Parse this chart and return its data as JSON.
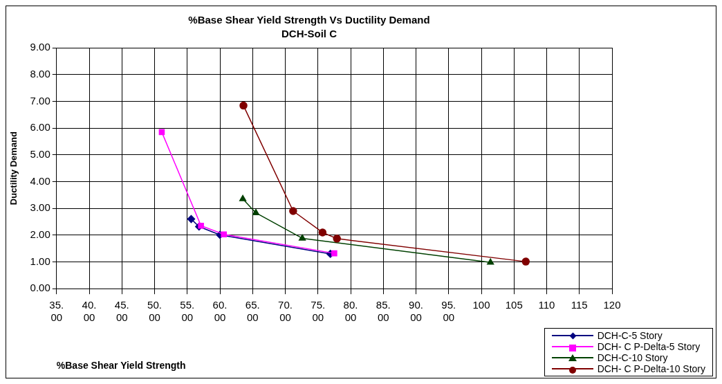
{
  "chart_data": {
    "type": "line",
    "title": "%Base Shear Yield Strength Vs Ductility Demand",
    "subtitle": "DCH-Soil C",
    "xlabel": "%Base Shear Yield Strength",
    "ylabel": "Ductility Demand",
    "series": [
      {
        "name": "DCH-C-5 Story",
        "color": "#000080",
        "marker": "diamond",
        "x": [
          55.6,
          56.8,
          60.0,
          76.9
        ],
        "values": [
          2.6,
          2.32,
          2.01,
          1.3
        ]
      },
      {
        "name": "DCH- C P-Delta-5 Story",
        "color": "#ff00ff",
        "marker": "square",
        "x": [
          51.1,
          57.1,
          60.6,
          77.5
        ],
        "values": [
          5.85,
          2.35,
          2.03,
          1.32
        ]
      },
      {
        "name": "DCH-C-10 Story",
        "color": "#004000",
        "marker": "triangle",
        "x": [
          63.5,
          65.5,
          72.6,
          101.4
        ],
        "values": [
          3.35,
          2.83,
          1.88,
          0.98
        ]
      },
      {
        "name": "DCH- C P-Delta-10 Story",
        "color": "#800000",
        "marker": "circle",
        "x": [
          63.6,
          71.2,
          75.7,
          77.9,
          106.8
        ],
        "values": [
          6.84,
          2.9,
          2.1,
          1.87,
          1.01
        ]
      }
    ],
    "xlim": [
      35,
      120
    ],
    "xticks": [
      {
        "value": 35,
        "label": "35.00"
      },
      {
        "value": 40,
        "label": "40.00"
      },
      {
        "value": 45,
        "label": "45.00"
      },
      {
        "value": 50,
        "label": "50.00"
      },
      {
        "value": 55,
        "label": "55.00"
      },
      {
        "value": 60,
        "label": "60.00"
      },
      {
        "value": 65,
        "label": "65.00"
      },
      {
        "value": 70,
        "label": "70.00"
      },
      {
        "value": 75,
        "label": "75.00"
      },
      {
        "value": 80,
        "label": "80.00"
      },
      {
        "value": 85,
        "label": "85.00"
      },
      {
        "value": 90,
        "label": "90.00"
      },
      {
        "value": 95,
        "label": "95.00"
      },
      {
        "value": 100,
        "label": "100"
      },
      {
        "value": 105,
        "label": "105"
      },
      {
        "value": 110,
        "label": "110"
      },
      {
        "value": 115,
        "label": "115"
      },
      {
        "value": 120,
        "label": "120"
      }
    ],
    "ylim": [
      0,
      9
    ],
    "yticks": [
      {
        "value": 0,
        "label": "0.00"
      },
      {
        "value": 1,
        "label": "1.00"
      },
      {
        "value": 2,
        "label": "2.00"
      },
      {
        "value": 3,
        "label": "3.00"
      },
      {
        "value": 4,
        "label": "4.00"
      },
      {
        "value": 5,
        "label": "5.00"
      },
      {
        "value": 6,
        "label": "6.00"
      },
      {
        "value": 7,
        "label": "7.00"
      },
      {
        "value": 8,
        "label": "8.00"
      },
      {
        "value": 9,
        "label": "9.00"
      }
    ],
    "grid": true,
    "legend": "bottom right",
    "line_style": "solid"
  }
}
